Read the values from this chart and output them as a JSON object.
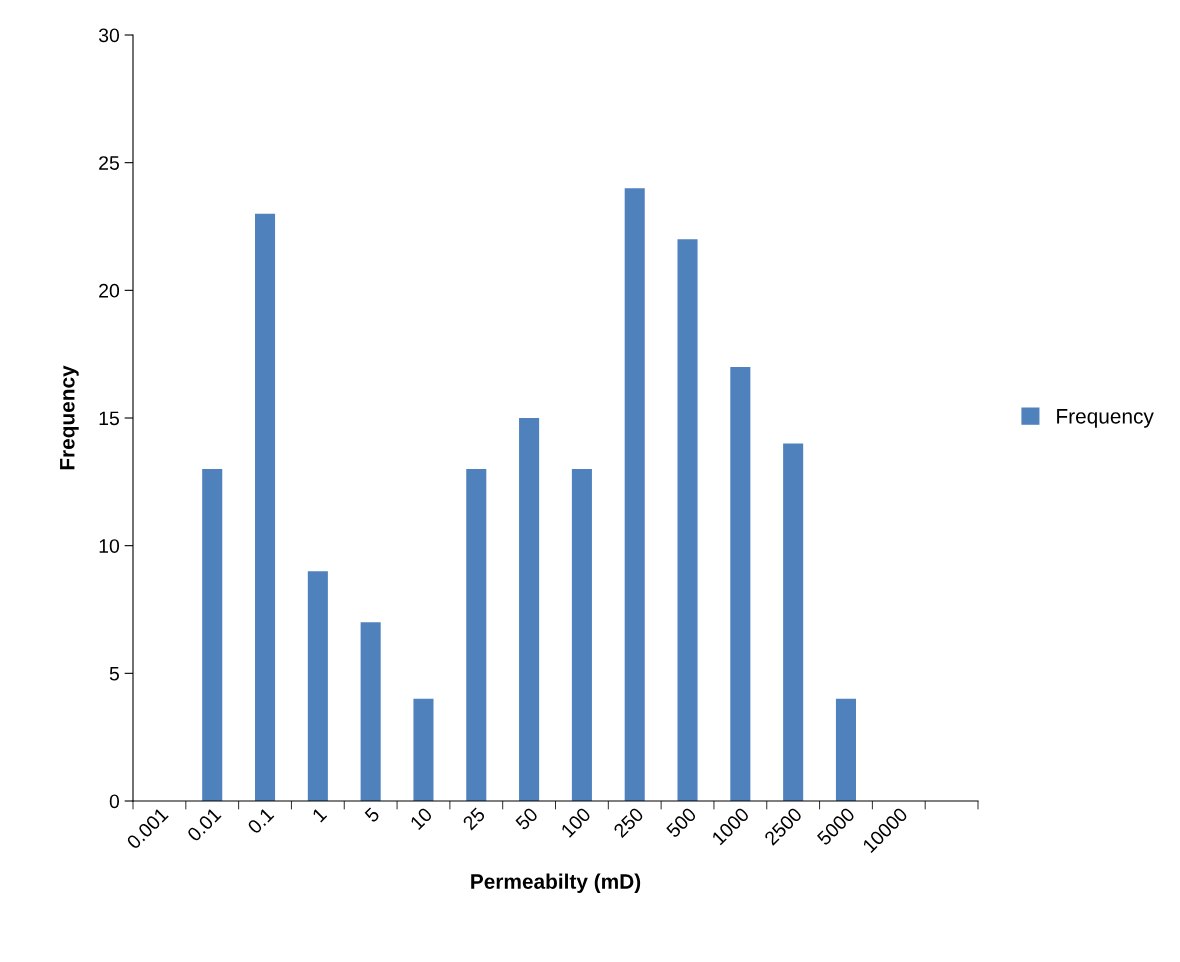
{
  "chart_data": {
    "type": "bar",
    "xlabel": "Permeabilty (mD)",
    "ylabel": "Frequency",
    "categories": [
      "0.001",
      "0.01",
      "0.1",
      "1",
      "5",
      "10",
      "25",
      "50",
      "100",
      "250",
      "500",
      "1000",
      "2500",
      "5000",
      "10000",
      null
    ],
    "series": [
      {
        "name": "Frequency",
        "color": "#4f81bd",
        "values": [
          0,
          13,
          23,
          9,
          7,
          4,
          13,
          15,
          13,
          24,
          22,
          17,
          14,
          4,
          0,
          0
        ]
      }
    ],
    "ylim": [
      0,
      30
    ],
    "yticks": [
      0,
      5,
      10,
      15,
      20,
      25,
      30
    ],
    "legend": "right",
    "grid": false
  }
}
